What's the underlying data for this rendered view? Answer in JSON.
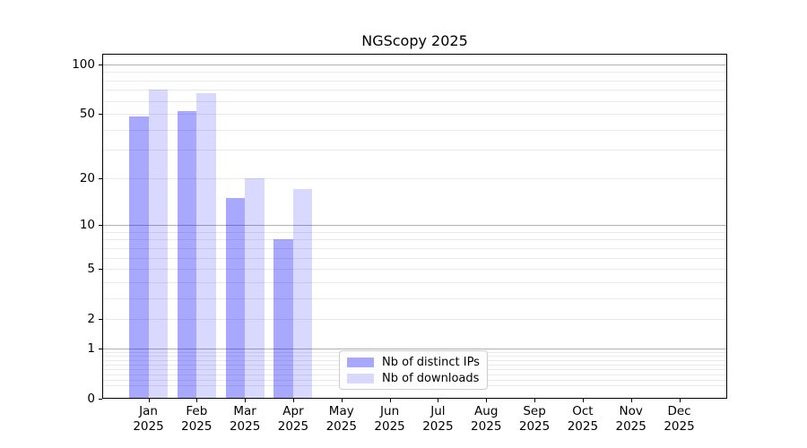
{
  "title": "NGScopy 2025",
  "colors": {
    "distinct_ips": "rgba(0,0,255,0.34)",
    "downloads": "rgba(0,0,255,0.15)",
    "grid_major": "#b0b0b0",
    "grid_minor": "#e9e9e9",
    "axis": "#000000",
    "legend_border": "#cccccc"
  },
  "chart_data": {
    "type": "bar",
    "title": "NGScopy 2025",
    "categories": [
      "Jan",
      "Feb",
      "Mar",
      "Apr",
      "May",
      "Jun",
      "Jul",
      "Aug",
      "Sep",
      "Oct",
      "Nov",
      "Dec"
    ],
    "category_year": "2025",
    "series": [
      {
        "name": "Nb of distinct IPs",
        "values": [
          48,
          52,
          15,
          8,
          0,
          0,
          0,
          0,
          0,
          0,
          0,
          0
        ]
      },
      {
        "name": "Nb of downloads",
        "values": [
          70,
          67,
          20,
          17,
          0,
          0,
          0,
          0,
          0,
          0,
          0,
          0
        ]
      }
    ],
    "xlabel": "",
    "ylabel": "",
    "yscale": "log1p",
    "ylim": [
      0,
      116
    ],
    "yticks": [
      0,
      1,
      2,
      5,
      10,
      20,
      50,
      100
    ],
    "major_grid_values": [
      1,
      10,
      100
    ],
    "minor_grid_values": [
      0.2,
      0.3,
      0.4,
      0.5,
      0.6,
      0.7,
      0.8,
      0.9,
      2,
      3,
      4,
      5,
      6,
      7,
      8,
      9,
      20,
      30,
      40,
      50,
      60,
      70,
      80,
      90
    ],
    "grid": true,
    "legend_position": "lower center",
    "legend_entries": [
      "Nb of distinct IPs",
      "Nb of downloads"
    ]
  }
}
